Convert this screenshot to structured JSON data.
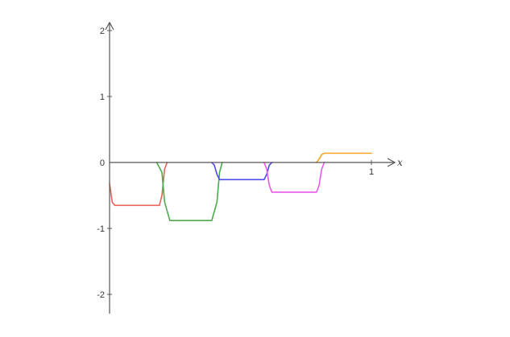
{
  "chart_data": {
    "type": "line",
    "title": "",
    "xlabel": "x",
    "ylabel": "",
    "xlim": [
      0,
      1.05
    ],
    "ylim": [
      -2.3,
      2.1
    ],
    "x_ticks": [
      {
        "value": 1,
        "label": "1"
      }
    ],
    "y_ticks": [
      {
        "value": 2,
        "label": "2"
      },
      {
        "value": 1,
        "label": "1"
      },
      {
        "value": 0,
        "label": "0"
      },
      {
        "value": -1,
        "label": "-1"
      },
      {
        "value": -2,
        "label": "-2"
      }
    ],
    "grid": false,
    "legend": "none",
    "series": [
      {
        "color": "#e8615a",
        "x": [
          0.0,
          0.01,
          0.02,
          0.19,
          0.2,
          0.21,
          0.22
        ],
        "y": [
          -0.32,
          -0.6,
          -0.65,
          -0.65,
          -0.5,
          -0.1,
          0.0
        ]
      },
      {
        "color": "#4caa4c",
        "x": [
          0.18,
          0.2,
          0.21,
          0.23,
          0.39,
          0.41,
          0.42,
          0.43
        ],
        "y": [
          0.0,
          -0.15,
          -0.6,
          -0.88,
          -0.88,
          -0.6,
          -0.15,
          0.0
        ]
      },
      {
        "color": "#4a4ae8",
        "x": [
          0.39,
          0.4,
          0.41,
          0.42,
          0.59,
          0.6,
          0.61,
          0.62
        ],
        "y": [
          0.0,
          -0.04,
          -0.18,
          -0.26,
          -0.26,
          -0.18,
          -0.04,
          0.0
        ]
      },
      {
        "color": "#e85ae8",
        "x": [
          0.59,
          0.6,
          0.61,
          0.62,
          0.79,
          0.8,
          0.81,
          0.82
        ],
        "y": [
          0.0,
          -0.1,
          -0.35,
          -0.45,
          -0.45,
          -0.35,
          -0.1,
          0.0
        ]
      },
      {
        "color": "#f5a623",
        "x": [
          0.79,
          0.8,
          0.81,
          0.82,
          1.0
        ],
        "y": [
          0.0,
          0.05,
          0.12,
          0.14,
          0.14
        ]
      }
    ]
  }
}
